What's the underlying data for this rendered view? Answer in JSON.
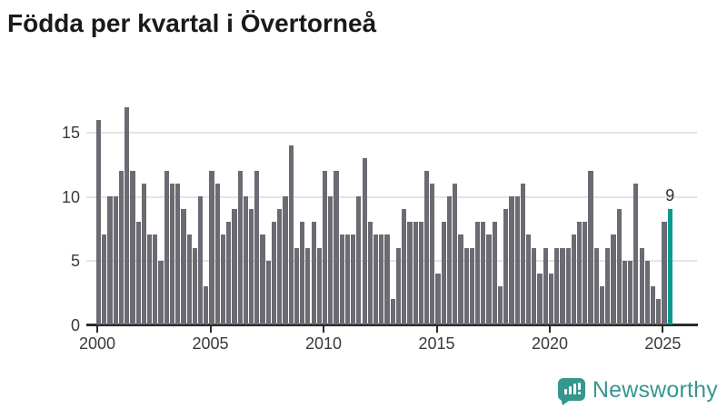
{
  "title": "Födda per kvartal i Övertorneå",
  "chart_data": {
    "type": "bar",
    "title": "Födda per kvartal i Övertorneå",
    "x_start_label": "2000",
    "x_end_label": "2025",
    "x_tick_labels": [
      "2000",
      "2005",
      "2010",
      "2015",
      "2020",
      "2025"
    ],
    "y_tick_labels": [
      "0",
      "5",
      "10",
      "15"
    ],
    "y_gridlines": [
      5,
      10,
      15
    ],
    "ylim": [
      0,
      17.6
    ],
    "period": "quarterly",
    "first_period": "2000 Q1",
    "last_period": "2025 Q2",
    "values": [
      16,
      7,
      10,
      10,
      12,
      17,
      12,
      8,
      11,
      7,
      7,
      5,
      12,
      11,
      11,
      9,
      7,
      6,
      10,
      3,
      12,
      11,
      7,
      8,
      9,
      12,
      10,
      9,
      12,
      7,
      5,
      8,
      9,
      10,
      14,
      6,
      8,
      6,
      8,
      6,
      12,
      10,
      12,
      7,
      7,
      7,
      10,
      13,
      8,
      7,
      7,
      7,
      2,
      6,
      9,
      8,
      8,
      8,
      12,
      11,
      4,
      8,
      10,
      11,
      7,
      6,
      6,
      8,
      8,
      7,
      8,
      3,
      9,
      10,
      10,
      11,
      7,
      6,
      4,
      6,
      4,
      6,
      6,
      6,
      7,
      8,
      8,
      12,
      6,
      3,
      6,
      7,
      9,
      5,
      5,
      11,
      6,
      5,
      3,
      2,
      8,
      9
    ],
    "highlight_last_bar": true,
    "last_value_label": "9",
    "bar_color": "#6b6b73",
    "highlight_color": "#0a9a92",
    "gridline_color": "#e4e4e4",
    "axis_color": "#2b2b2b",
    "legend": "none",
    "grid": "horizontal"
  },
  "branding": {
    "logo_text": "Newsworthy",
    "logo_color": "#36978f"
  }
}
